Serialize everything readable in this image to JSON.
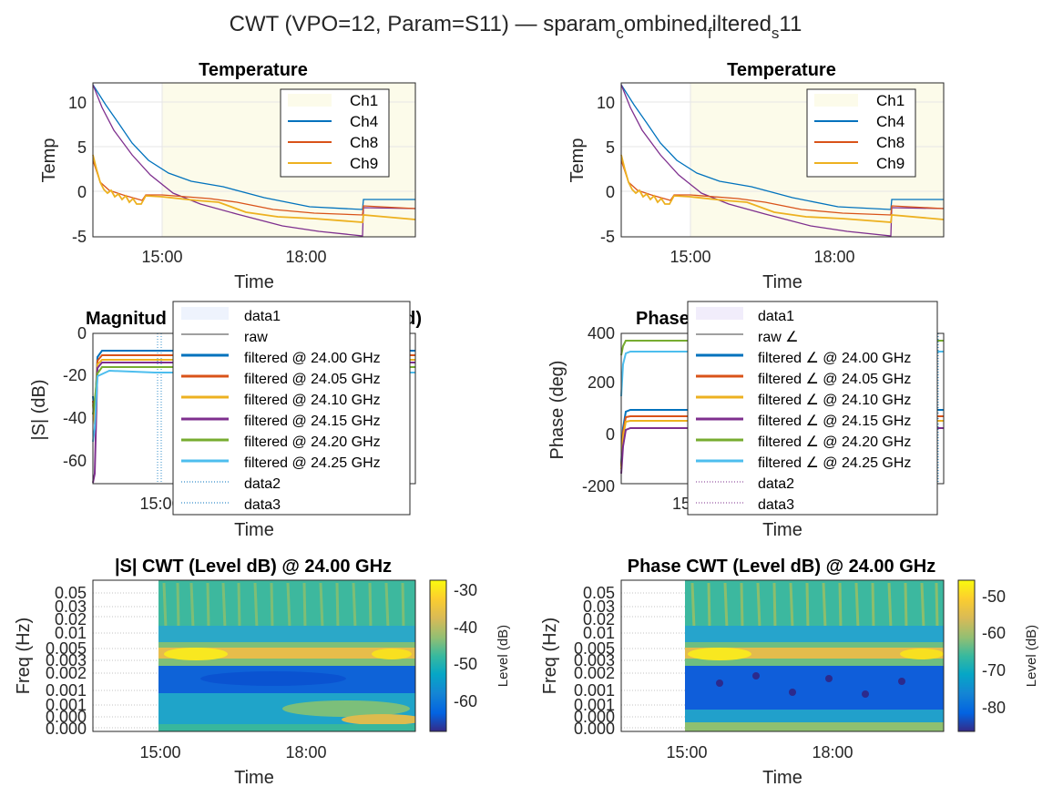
{
  "figure": {
    "suptitle_pre": "CWT (VPO=12, Param=S11) — sparam",
    "suptitle_s1": "c",
    "suptitle_m1": "ombined",
    "suptitle_s2": "f",
    "suptitle_m2": "iltered",
    "suptitle_s3": "s",
    "suptitle_post": "11"
  },
  "colors": {
    "ch4": "#0072BD",
    "ch8": "#D95319",
    "ch9": "#EDB120",
    "purple": "#7E2F8E",
    "green": "#77AC30",
    "cyan": "#4DBEEE",
    "shade": "#FCFBEA"
  },
  "chart_data": [
    {
      "id": "temp-left",
      "type": "line",
      "title": "Temperature",
      "xlabel": "Time",
      "ylabel": "Temp",
      "ylim": [
        -5,
        12
      ],
      "yticks": [
        "-5",
        "0",
        "5",
        "10"
      ],
      "xticks": [
        "15:00",
        "18:00"
      ],
      "legend_position": "top-right",
      "legend": [
        "Ch1",
        "Ch4",
        "Ch8",
        "Ch9"
      ],
      "shaded_region": {
        "from": "15:00",
        "to": "end"
      },
      "series": [
        {
          "name": "Ch4",
          "x": [
            "13:20",
            "13:45",
            "14:15",
            "14:50",
            "15:30",
            "16:30",
            "18:00",
            "19:30",
            "19:31",
            "21:00"
          ],
          "y": [
            12,
            7.5,
            4.2,
            2,
            0.7,
            -0.8,
            -2.3,
            -3,
            -1,
            -1
          ]
        },
        {
          "name": "Ch8",
          "x": [
            "13:20",
            "13:40",
            "14:05",
            "14:30",
            "15:00",
            "16:15",
            "17:30",
            "19:00",
            "19:30",
            "19:31",
            "21:00"
          ],
          "y": [
            3.5,
            0.5,
            -0.5,
            -1,
            -1.1,
            -0.8,
            -2.2,
            -2.4,
            -2.5,
            -1.5,
            -1.9
          ]
        },
        {
          "name": "Ch9",
          "x": [
            "13:20",
            "13:40",
            "14:05",
            "14:30",
            "15:00",
            "16:15",
            "17:30",
            "19:00",
            "19:30",
            "19:31",
            "21:00"
          ],
          "y": [
            4.2,
            0.5,
            -0.6,
            -1.2,
            -0.9,
            -1.3,
            -2.8,
            -3.1,
            -3.3,
            -2.8,
            -3
          ]
        },
        {
          "name": "purple",
          "x": [
            "13:20",
            "13:45",
            "14:20",
            "15:00",
            "16:10",
            "17:30",
            "18:45",
            "19:30",
            "19:31",
            "21:00"
          ],
          "y": [
            12,
            6,
            1.8,
            -0.5,
            -2.5,
            -4,
            -4.7,
            -5,
            -1.8,
            -1.9
          ]
        }
      ]
    },
    {
      "id": "temp-right",
      "type": "line",
      "title": "Temperature",
      "xlabel": "Time",
      "ylabel": "Temp",
      "ylim": [
        -5,
        12
      ],
      "yticks": [
        "-5",
        "0",
        "5",
        "10"
      ],
      "xticks": [
        "15:00",
        "18:00"
      ],
      "legend_position": "top-right",
      "legend": [
        "Ch1",
        "Ch4",
        "Ch8",
        "Ch9"
      ]
    },
    {
      "id": "mag",
      "type": "line",
      "title_left": "Magnitud",
      "title_right": "d)",
      "xlabel": "Time",
      "ylabel": "|S| (dB)",
      "ylim": [
        -70,
        0
      ],
      "yticks": [
        "-60",
        "-40",
        "-20",
        "0"
      ],
      "xticks": [
        "15:00"
      ],
      "legend": [
        "data1",
        "raw",
        "filtered @ 24.00 GHz",
        "filtered @ 24.05 GHz",
        "filtered @ 24.10 GHz",
        "filtered @ 24.15 GHz",
        "filtered @ 24.20 GHz",
        "filtered @ 24.25 GHz",
        "data2",
        "data3"
      ],
      "series": [
        {
          "name": "filtered @ 24.00 GHz",
          "start": -60,
          "level": -8.5
        },
        {
          "name": "filtered @ 24.05 GHz",
          "start": -62,
          "level": -10.5
        },
        {
          "name": "filtered @ 24.10 GHz",
          "start": -64,
          "level": -12.5
        },
        {
          "name": "filtered @ 24.15 GHz",
          "start": -70,
          "level": -14
        },
        {
          "name": "filtered @ 24.20 GHz",
          "start": -40,
          "level": -16
        },
        {
          "name": "filtered @ 24.25 GHz",
          "start": -50,
          "level": -19
        }
      ]
    },
    {
      "id": "phase",
      "type": "line",
      "title_left": "Phase",
      "xlabel": "Time",
      "ylabel": "Phase (deg)",
      "ylim": [
        -200,
        400
      ],
      "yticks": [
        "-200",
        "0",
        "200",
        "400"
      ],
      "xticks": [
        "15"
      ],
      "legend": [
        "data1",
        "raw ∠",
        "filtered ∠ @ 24.00 GHz",
        "filtered ∠ @ 24.05 GHz",
        "filtered ∠ @ 24.10 GHz",
        "filtered ∠ @ 24.15 GHz",
        "filtered ∠ @ 24.20 GHz",
        "filtered ∠ @ 24.25 GHz",
        "data2",
        "data3"
      ],
      "series": [
        {
          "name": "filtered ∠ @ 24.00 GHz",
          "start": -120,
          "level": 90
        },
        {
          "name": "filtered ∠ @ 24.05 GHz",
          "start": -130,
          "level": 70
        },
        {
          "name": "filtered ∠ @ 24.10 GHz",
          "start": -140,
          "level": 55
        },
        {
          "name": "filtered ∠ @ 24.15 GHz",
          "start": -150,
          "level": 25
        },
        {
          "name": "filtered ∠ @ 24.20 GHz",
          "start": 250,
          "level": 355
        },
        {
          "name": "filtered ∠ @ 24.25 GHz",
          "start": 150,
          "level": 315
        }
      ]
    },
    {
      "id": "cwt-mag",
      "type": "heatmap",
      "title": "|S| CWT (Level dB) @ 24.00 GHz",
      "xlabel": "Time",
      "ylabel": "Freq (Hz)",
      "yticks": [
        "0.05",
        "0.03",
        "0.02",
        "0.01",
        "0.005",
        "0.003",
        "0.002",
        "0.001",
        "0.001",
        "0.000",
        "0.000"
      ],
      "xticks": [
        "15:00",
        "18:00"
      ],
      "colorbar_label": "Level (dB)",
      "colorbar_ticks": [
        "-30",
        "-40",
        "-50",
        "-60"
      ],
      "clim": [
        -68,
        -27
      ]
    },
    {
      "id": "cwt-phase",
      "type": "heatmap",
      "title": "Phase CWT (Level dB) @ 24.00 GHz",
      "xlabel": "Time",
      "ylabel": "Freq (Hz)",
      "yticks": [
        "0.05",
        "0.03",
        "0.02",
        "0.01",
        "0.005",
        "0.003",
        "0.002",
        "0.001",
        "0.001",
        "0.000",
        "0.000"
      ],
      "xticks": [
        "15:00",
        "18:00"
      ],
      "colorbar_label": "Level (dB)",
      "colorbar_ticks": [
        "-50",
        "-60",
        "-70",
        "-80"
      ],
      "clim": [
        -86,
        -45
      ]
    }
  ]
}
